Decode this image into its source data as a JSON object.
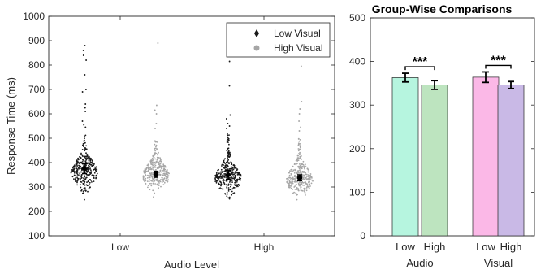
{
  "chart_data": [
    {
      "type": "scatter",
      "subtype": "swarm",
      "title": "",
      "xlabel": "Audio Level",
      "ylabel": "Response Time (ms)",
      "ylim": [
        100,
        1000
      ],
      "yticks": [
        100,
        200,
        300,
        400,
        500,
        600,
        700,
        800,
        900,
        1000
      ],
      "categories": [
        "Low",
        "High"
      ],
      "legend": {
        "position": "top-right",
        "entries": [
          "Low Visual",
          "High Visual"
        ]
      },
      "series": [
        {
          "name": "Low Visual",
          "color": "#1a1a1a",
          "marker": "diamond",
          "means": [
            375,
            350
          ],
          "ci_halfwidth": [
            20,
            18
          ],
          "distribution": {
            "median": [
              360,
              335
            ],
            "min": [
              245,
              210
            ],
            "bulk_max": [
              520,
              530
            ]
          },
          "outliers": [
            [
              880,
              860,
              840,
              820,
              760,
              700,
              690,
              640,
              625,
              610,
              570,
              555,
              545
            ],
            [
              955,
              815,
              715,
              595,
              580,
              560,
              550,
              540
            ]
          ]
        },
        {
          "name": "High Visual",
          "color": "#a6a6a6",
          "marker": "circle",
          "means": [
            352,
            338
          ],
          "ci_halfwidth": [
            12,
            12
          ],
          "distribution": {
            "median": [
              345,
              330
            ],
            "min": [
              225,
              230
            ],
            "bulk_max": [
              490,
              500
            ]
          },
          "outliers": [
            [
              890,
              635,
              615,
              600,
              560,
              540
            ],
            [
              795,
              650,
              620,
              600,
              570,
              545,
              530
            ]
          ]
        }
      ]
    },
    {
      "type": "bar",
      "title": "Group-Wise Comparisons",
      "xlabel": "",
      "ylabel": "",
      "ylim": [
        0,
        500
      ],
      "yticks": [
        0,
        100,
        200,
        300,
        400,
        500
      ],
      "groups": [
        {
          "label": "Audio",
          "categories": [
            "Low",
            "High"
          ],
          "values": [
            363,
            346
          ],
          "errors": [
            10,
            10
          ],
          "colors": [
            "#b6f5df",
            "#bde4bf"
          ]
        },
        {
          "label": "Visual",
          "categories": [
            "Low",
            "High"
          ],
          "values": [
            364,
            346
          ],
          "errors": [
            12,
            8
          ],
          "colors": [
            "#fbb8e7",
            "#c9b9e6"
          ]
        }
      ],
      "significance": [
        "***",
        "***"
      ]
    }
  ]
}
